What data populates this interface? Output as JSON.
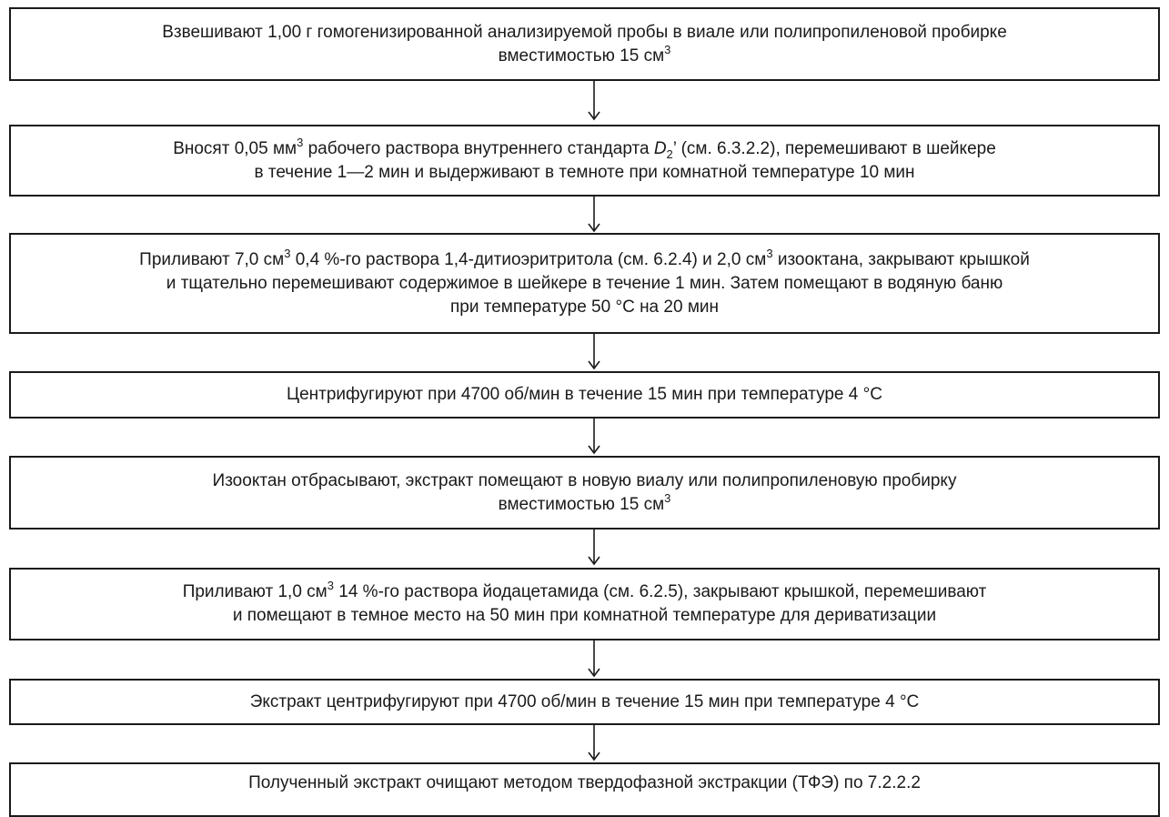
{
  "steps": [
    {
      "line1": {
        "a": "Взвешивают 1,00 г гомогенизированной анализируемой пробы в виале или полипропиленовой пробирке"
      },
      "line2": {
        "a": "вместимостью 15 см",
        "sup": "3"
      }
    },
    {
      "line1": {
        "a": "Вносят 0,05 мм",
        "sup": "3",
        "b": " рабочего раствора внутреннего стандарта ",
        "var": "D",
        "sub": "2",
        "c": "’ (см. 6.3.2.2), перемешивают в шейкере"
      },
      "line2": {
        "a": "в течение 1—2 мин и выдерживают в темноте при комнатной температуре 10 мин"
      }
    },
    {
      "line1": {
        "a": "Приливают 7,0 см",
        "sup": "3",
        "b": " 0,4 %-го раствора 1,4-дитиоэритритола (см. 6.2.4) и 2,0 см",
        "sup2": "3",
        "c": " изооктана, закрывают крышкой"
      },
      "line2": {
        "a": "и тщательно перемешивают содержимое в шейкере в течение 1 мин. Затем помещают в водяную баню"
      },
      "line3": {
        "a": "при температуре 50 °С на 20 мин"
      }
    },
    {
      "line1": {
        "a": "Центрифугируют при 4700 об/мин в течение 15 мин при температуре 4 °С"
      }
    },
    {
      "line1": {
        "a": "Изооктан отбрасывают, экстракт помещают в новую виалу или полипропиленовую пробирку"
      },
      "line2": {
        "a": "вместимостью 15 см",
        "sup": "3"
      }
    },
    {
      "line1": {
        "a": "Приливают 1,0 см",
        "sup": "3",
        "b": " 14 %-го раствора йодацетамида (см. 6.2.5), закрывают крышкой, перемешивают"
      },
      "line2": {
        "a": "и помещают в темное место на 50 мин при комнатной температуре для дериватизации"
      }
    },
    {
      "line1": {
        "a": "Экстракт центрифугируют при 4700 об/мин в течение 15 мин при температуре 4 °С"
      }
    },
    {
      "line1": {
        "a": "Полученный экстракт очищают методом твердофазной экстракции (ТФЭ) по 7.2.2.2"
      }
    }
  ]
}
